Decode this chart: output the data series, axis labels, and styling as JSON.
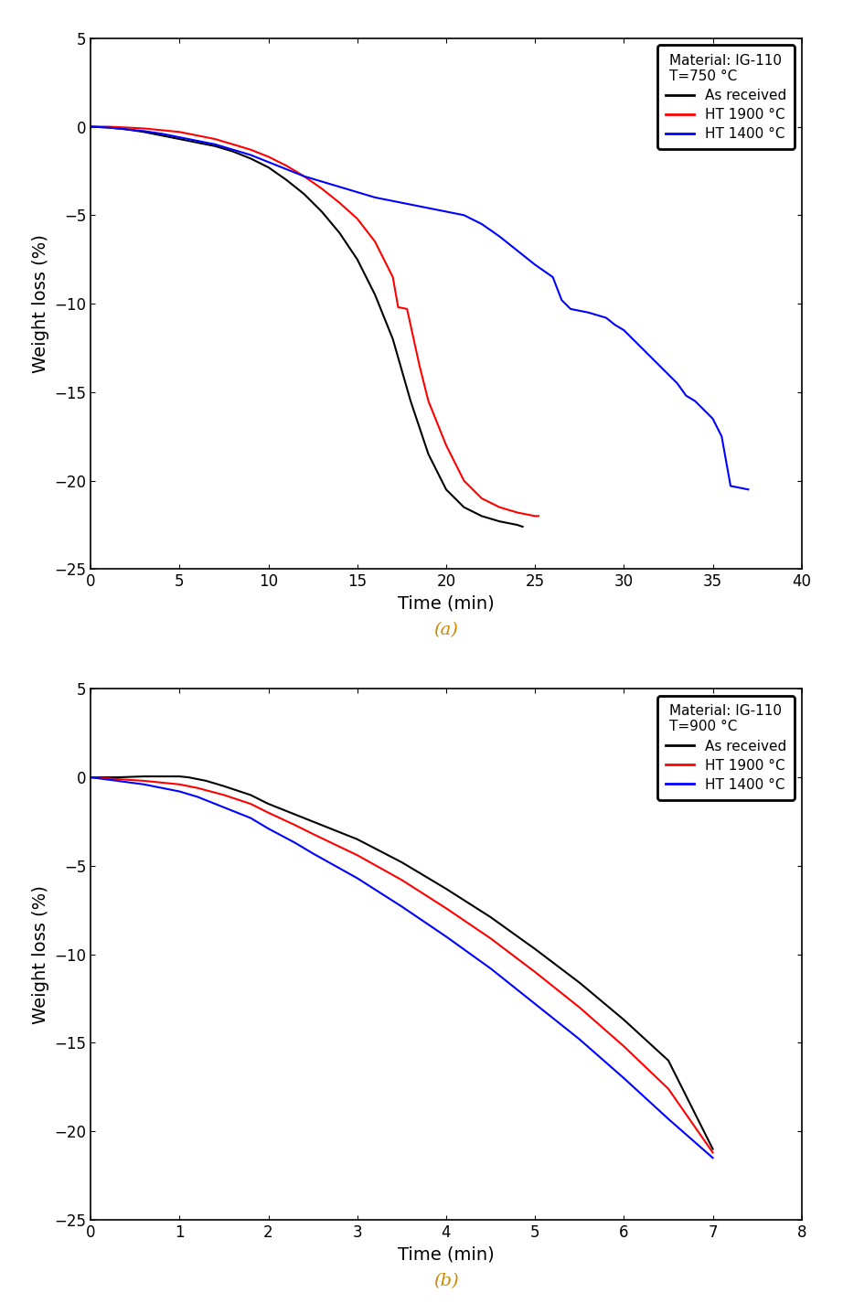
{
  "panel_a": {
    "title_lines": [
      "Material: IG-110",
      "T=750 °C"
    ],
    "xlabel": "Time (min)",
    "ylabel": "Weight loss (%)",
    "xlim": [
      0,
      40
    ],
    "ylim": [
      -25,
      5
    ],
    "xticks": [
      0,
      5,
      10,
      15,
      20,
      25,
      30,
      35,
      40
    ],
    "yticks": [
      -25,
      -20,
      -15,
      -10,
      -5,
      0,
      5
    ],
    "label": "(a)",
    "legend": [
      {
        "label": "As received",
        "color": "#000000"
      },
      {
        "label": "HT 1900 °C",
        "color": "#ff0000"
      },
      {
        "label": "HT 1400 °C",
        "color": "#0000ff"
      }
    ],
    "series": {
      "as_received": {
        "color": "#000000",
        "x": [
          0,
          1,
          2,
          3,
          4,
          5,
          6,
          7,
          8,
          9,
          10,
          11,
          12,
          13,
          14,
          15,
          16,
          17,
          18,
          19,
          20,
          21,
          22,
          23,
          24,
          24.3
        ],
        "y": [
          0,
          -0.05,
          -0.15,
          -0.3,
          -0.5,
          -0.7,
          -0.9,
          -1.1,
          -1.4,
          -1.8,
          -2.3,
          -3.0,
          -3.8,
          -4.8,
          -6.0,
          -7.5,
          -9.5,
          -12.0,
          -15.5,
          -18.5,
          -20.5,
          -21.5,
          -22.0,
          -22.3,
          -22.5,
          -22.6
        ]
      },
      "ht1900": {
        "color": "#ff0000",
        "x": [
          0,
          1,
          2,
          3,
          4,
          5,
          6,
          7,
          8,
          9,
          10,
          11,
          12,
          13,
          14,
          15,
          16,
          17,
          17.3,
          17.8,
          18.5,
          19,
          20,
          21,
          22,
          23,
          24,
          25,
          25.2
        ],
        "y": [
          0,
          0.0,
          -0.05,
          -0.1,
          -0.2,
          -0.3,
          -0.5,
          -0.7,
          -1.0,
          -1.3,
          -1.7,
          -2.2,
          -2.8,
          -3.5,
          -4.3,
          -5.2,
          -6.5,
          -8.5,
          -10.2,
          -10.3,
          -13.5,
          -15.5,
          -18.0,
          -20.0,
          -21.0,
          -21.5,
          -21.8,
          -22.0,
          -22.0
        ]
      },
      "ht1400": {
        "color": "#0000ff",
        "x": [
          0,
          1,
          2,
          3,
          4,
          5,
          6,
          7,
          8,
          9,
          10,
          11,
          12,
          13,
          14,
          15,
          16,
          17,
          18,
          19,
          20,
          21,
          22,
          23,
          24,
          25,
          26,
          26.5,
          27,
          28,
          29,
          29.5,
          30,
          31,
          32,
          33,
          33.5,
          34,
          35,
          35.5,
          36,
          37
        ],
        "y": [
          0,
          -0.05,
          -0.15,
          -0.25,
          -0.4,
          -0.6,
          -0.8,
          -1.0,
          -1.3,
          -1.6,
          -2.0,
          -2.4,
          -2.8,
          -3.1,
          -3.4,
          -3.7,
          -4.0,
          -4.2,
          -4.4,
          -4.6,
          -4.8,
          -5.0,
          -5.5,
          -6.2,
          -7.0,
          -7.8,
          -8.5,
          -9.8,
          -10.3,
          -10.5,
          -10.8,
          -11.2,
          -11.5,
          -12.5,
          -13.5,
          -14.5,
          -15.2,
          -15.5,
          -16.5,
          -17.5,
          -20.3,
          -20.5
        ]
      }
    }
  },
  "panel_b": {
    "title_lines": [
      "Material: IG-110",
      "T=900 °C"
    ],
    "xlabel": "Time (min)",
    "ylabel": "Weight loss (%)",
    "xlim": [
      0,
      8
    ],
    "ylim": [
      -25,
      5
    ],
    "xticks": [
      0,
      1,
      2,
      3,
      4,
      5,
      6,
      7,
      8
    ],
    "yticks": [
      -25,
      -20,
      -15,
      -10,
      -5,
      0,
      5
    ],
    "label": "(b)",
    "legend": [
      {
        "label": "As received",
        "color": "#000000"
      },
      {
        "label": "HT 1900 °C",
        "color": "#ff0000"
      },
      {
        "label": "HT 1400 °C",
        "color": "#0000ff"
      }
    ],
    "series": {
      "as_received": {
        "color": "#000000",
        "x": [
          0,
          0.3,
          0.6,
          0.8,
          1.0,
          1.1,
          1.3,
          1.5,
          1.8,
          2.0,
          2.3,
          2.5,
          3.0,
          3.5,
          4.0,
          4.5,
          5.0,
          5.5,
          6.0,
          6.5,
          7.0
        ],
        "y": [
          0,
          0.0,
          0.05,
          0.05,
          0.05,
          0.0,
          -0.2,
          -0.5,
          -1.0,
          -1.5,
          -2.1,
          -2.5,
          -3.5,
          -4.8,
          -6.3,
          -7.9,
          -9.7,
          -11.6,
          -13.7,
          -16.0,
          -21.0
        ]
      },
      "ht1900": {
        "color": "#ff0000",
        "x": [
          0,
          0.3,
          0.6,
          0.8,
          1.0,
          1.2,
          1.5,
          1.8,
          2.0,
          2.3,
          2.5,
          3.0,
          3.5,
          4.0,
          4.5,
          5.0,
          5.5,
          6.0,
          6.5,
          7.0
        ],
        "y": [
          0,
          -0.1,
          -0.2,
          -0.3,
          -0.4,
          -0.6,
          -1.0,
          -1.5,
          -2.0,
          -2.7,
          -3.2,
          -4.4,
          -5.8,
          -7.4,
          -9.1,
          -11.0,
          -13.0,
          -15.2,
          -17.6,
          -21.2
        ]
      },
      "ht1400": {
        "color": "#0000ff",
        "x": [
          0,
          0.3,
          0.6,
          0.8,
          1.0,
          1.2,
          1.5,
          1.8,
          2.0,
          2.3,
          2.5,
          3.0,
          3.5,
          4.0,
          4.5,
          5.0,
          5.5,
          6.0,
          6.5,
          7.0
        ],
        "y": [
          0,
          -0.2,
          -0.4,
          -0.6,
          -0.8,
          -1.1,
          -1.7,
          -2.3,
          -2.9,
          -3.7,
          -4.3,
          -5.7,
          -7.3,
          -9.0,
          -10.8,
          -12.8,
          -14.8,
          -17.0,
          -19.3,
          -21.5
        ]
      }
    }
  },
  "background_color": "#ffffff",
  "label_color": "#cc8800",
  "linewidth": 1.5
}
